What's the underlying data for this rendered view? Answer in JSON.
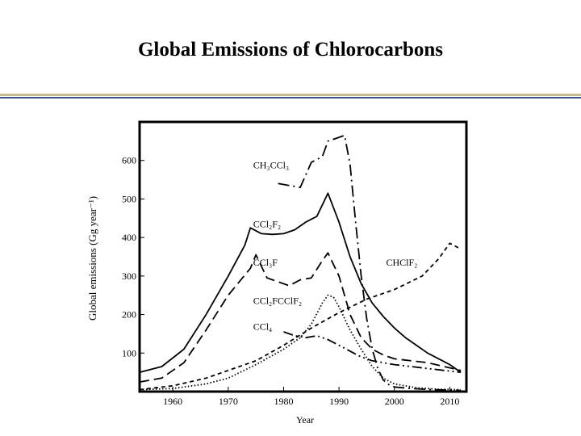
{
  "slide": {
    "title": "Global Emissions of Chlorocarbons"
  },
  "colors": {
    "rule_gold": "#c9b88a",
    "rule_navy": "#3d4f8c",
    "ink": "#000000"
  },
  "chart_data": {
    "type": "line",
    "title": "",
    "xlabel": "Year",
    "ylabel": "Global emissions (Gg year⁻¹)",
    "xlim": [
      1954,
      2013
    ],
    "ylim": [
      0,
      700
    ],
    "x_ticks": [
      1960,
      1970,
      1980,
      1990,
      2000,
      2010
    ],
    "y_ticks": [
      100,
      200,
      300,
      400,
      500,
      600
    ],
    "grid": false,
    "legend": "inline labels",
    "series": [
      {
        "name": "CCl₂F₂",
        "style": "solid",
        "x": [
          1954,
          1958,
          1962,
          1966,
          1970,
          1973,
          1974,
          1976,
          1978,
          1980,
          1982,
          1984,
          1986,
          1988,
          1990,
          1992,
          1994,
          1996,
          1998,
          2000,
          2002,
          2004,
          2006,
          2008,
          2010,
          2012
        ],
        "y": [
          50,
          65,
          110,
          200,
          300,
          380,
          425,
          410,
          408,
          410,
          420,
          440,
          455,
          515,
          440,
          350,
          280,
          230,
          195,
          165,
          140,
          120,
          100,
          85,
          70,
          50
        ]
      },
      {
        "name": "CCl₃F",
        "style": "dashed",
        "x": [
          1954,
          1958,
          1962,
          1966,
          1970,
          1974,
          1975,
          1977,
          1979,
          1981,
          1983,
          1985,
          1987,
          1988,
          1990,
          1992,
          1994,
          1996,
          1998,
          2000,
          2003,
          2006,
          2009,
          2012
        ],
        "y": [
          25,
          35,
          75,
          160,
          250,
          320,
          355,
          295,
          285,
          275,
          290,
          295,
          340,
          360,
          300,
          200,
          140,
          110,
          95,
          85,
          80,
          75,
          65,
          55
        ]
      },
      {
        "name": "CH₃CCl₃",
        "style": "dash-dot",
        "x": [
          1979,
          1981,
          1983,
          1985,
          1987,
          1988,
          1990,
          1991,
          1992,
          1993,
          1994,
          1995,
          1996,
          1997,
          1998,
          1999,
          2000,
          2003,
          2007,
          2012
        ],
        "y": [
          540,
          535,
          530,
          595,
          610,
          650,
          660,
          665,
          590,
          440,
          300,
          190,
          110,
          60,
          30,
          18,
          12,
          8,
          5,
          3
        ]
      },
      {
        "name": "CHClF₂",
        "style": "short-dash",
        "x": [
          1954,
          1960,
          1966,
          1970,
          1975,
          1980,
          1985,
          1990,
          1995,
          2000,
          2005,
          2008,
          2010,
          2012
        ],
        "y": [
          5,
          15,
          35,
          55,
          80,
          120,
          165,
          205,
          240,
          265,
          300,
          345,
          385,
          370
        ]
      },
      {
        "name": "CCl₂FCClF₂",
        "style": "dotted",
        "x": [
          1954,
          1960,
          1966,
          1970,
          1975,
          1980,
          1983,
          1985,
          1987,
          1988,
          1989,
          1990,
          1992,
          1994,
          1996,
          1998,
          2000,
          2004,
          2008,
          2012
        ],
        "y": [
          5,
          8,
          20,
          35,
          70,
          110,
          140,
          175,
          230,
          250,
          245,
          220,
          160,
          110,
          65,
          35,
          20,
          10,
          6,
          5
        ]
      },
      {
        "name": "CCl₄",
        "style": "dash-dot-dot",
        "x": [
          1980,
          1982,
          1984,
          1986,
          1988,
          1990,
          1992,
          1994,
          1996,
          1998,
          2000,
          2003,
          2006,
          2009,
          2012
        ],
        "y": [
          155,
          145,
          140,
          145,
          135,
          120,
          105,
          90,
          80,
          75,
          70,
          65,
          60,
          55,
          50
        ]
      }
    ],
    "labels": [
      {
        "name": "CH₃CCl₃",
        "x": 1974.5,
        "y": 580
      },
      {
        "name": "CCl₂F₂",
        "x": 1974.5,
        "y": 427
      },
      {
        "name": "CCl₃F",
        "x": 1974.5,
        "y": 327
      },
      {
        "name": "CHClF₂",
        "x": 1998.5,
        "y": 327
      },
      {
        "name": "CCl₂FCClF₂",
        "x": 1974.5,
        "y": 227
      },
      {
        "name": "CCl₄",
        "x": 1974.5,
        "y": 160
      }
    ]
  }
}
